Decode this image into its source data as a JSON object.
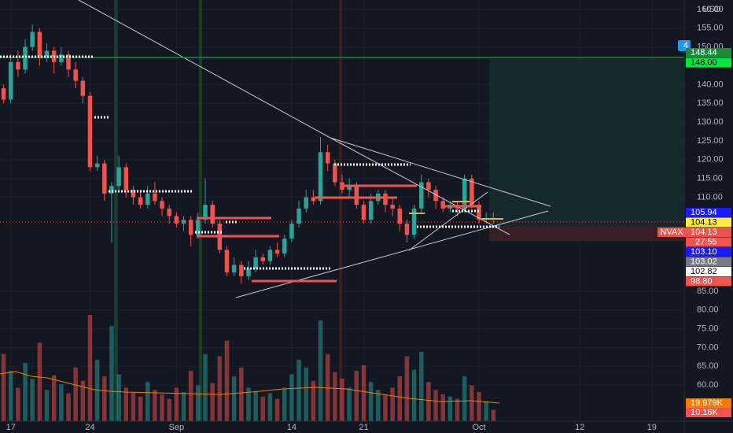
{
  "chart_data": {
    "type": "candlestick",
    "currency": "USD",
    "categories": [
      null,
      "17",
      null,
      null,
      null,
      null,
      null,
      null,
      null,
      null,
      null,
      null,
      "24",
      null,
      null,
      null,
      null,
      null,
      null,
      null,
      null,
      null,
      null,
      null,
      "Sep",
      null,
      null,
      null,
      null,
      null,
      null,
      null,
      null,
      null,
      null,
      null,
      null,
      null,
      null,
      null,
      "14",
      null,
      null,
      null,
      null,
      null,
      null,
      null,
      null,
      null,
      "21",
      null,
      null,
      null,
      null,
      null,
      null,
      null,
      null,
      null,
      null,
      null,
      null,
      null,
      null,
      null,
      "Oct",
      null,
      null,
      null,
      null,
      null,
      null,
      null,
      null,
      null,
      null,
      null,
      null,
      null,
      "12",
      null,
      null,
      null,
      null,
      null,
      null,
      null,
      null,
      null,
      "19",
      null,
      null,
      null,
      null
    ],
    "open": [
      139,
      136,
      146,
      144,
      150,
      154,
      147,
      149,
      146,
      148,
      144,
      141,
      137,
      118,
      119,
      111,
      113,
      118,
      112,
      110,
      108,
      111,
      109,
      107,
      105,
      103,
      104,
      100,
      104,
      108,
      103,
      96,
      90,
      92,
      89,
      91,
      94,
      93,
      96,
      95,
      99,
      103,
      107,
      110,
      109,
      122,
      119,
      114,
      112,
      113,
      108,
      104,
      109,
      111,
      108,
      107,
      103,
      100,
      107,
      114,
      112,
      109,
      107,
      108,
      107,
      115,
      108,
      104,
      104.5,
      null,
      null,
      null,
      null,
      null,
      null,
      null,
      null,
      null,
      null,
      null,
      null,
      null,
      null,
      null,
      null,
      null,
      null,
      null,
      null,
      null,
      null,
      null,
      null,
      null,
      null
    ],
    "high": [
      140,
      148,
      149,
      152,
      156,
      155,
      151,
      150,
      150,
      149,
      146,
      142,
      138,
      121,
      120,
      114,
      121,
      119,
      113,
      112,
      113,
      114,
      110,
      108,
      106,
      105,
      105,
      106,
      115,
      109,
      104,
      97,
      94,
      93,
      93,
      96,
      95,
      97,
      98,
      100,
      104,
      109,
      112,
      112,
      126,
      124,
      120,
      116,
      115,
      114,
      109,
      111,
      112,
      112,
      110,
      108,
      104,
      108,
      116,
      115,
      113,
      110,
      109,
      109,
      116,
      116,
      109,
      106,
      106,
      null,
      null,
      null,
      null,
      null,
      null,
      null,
      null,
      null,
      null,
      null,
      null,
      null,
      null,
      null,
      null,
      null,
      null,
      null,
      null,
      null,
      null,
      null,
      null,
      null,
      null
    ],
    "low": [
      135,
      135,
      142,
      143,
      149,
      145,
      146,
      143,
      145,
      142,
      139,
      135,
      117,
      117,
      109,
      98,
      112,
      110,
      108,
      107,
      107,
      108,
      105,
      103,
      102,
      101,
      97,
      99,
      103,
      102,
      95,
      89,
      89,
      87,
      88,
      90,
      92,
      92,
      94,
      94,
      98,
      102,
      106,
      108,
      108,
      117,
      113,
      111,
      110,
      107,
      103,
      103,
      108,
      106,
      105,
      101,
      98,
      99,
      106,
      110,
      107,
      106,
      106,
      105,
      106,
      107,
      103,
      103,
      103,
      null,
      null,
      null,
      null,
      null,
      null,
      null,
      null,
      null,
      null,
      null,
      null,
      null,
      null,
      null,
      null,
      null,
      null,
      null,
      null,
      null,
      null,
      null,
      null,
      null,
      null
    ],
    "close": [
      136,
      146,
      144,
      150,
      154,
      147,
      149,
      146,
      148,
      144,
      141,
      137,
      118,
      119,
      111,
      113,
      118,
      112,
      110,
      108,
      111,
      109,
      107,
      105,
      103,
      104,
      100,
      104,
      108,
      103,
      96,
      90,
      92,
      89,
      91,
      94,
      93,
      96,
      95,
      99,
      103,
      107,
      110,
      109,
      122,
      119,
      114,
      112,
      113,
      108,
      104,
      109,
      111,
      108,
      107,
      103,
      100,
      107,
      114,
      112,
      109,
      107,
      108,
      107,
      115,
      108,
      104,
      104.5,
      104.13,
      null,
      null,
      null,
      null,
      null,
      null,
      null,
      null,
      null,
      null,
      null,
      null,
      null,
      null,
      null,
      null,
      null,
      null,
      null,
      null,
      null,
      null,
      null,
      null,
      null,
      null
    ],
    "volume": [
      60000,
      45000,
      30000,
      52000,
      38000,
      70000,
      28000,
      41000,
      33000,
      25000,
      48000,
      36000,
      95000,
      55000,
      40000,
      85000,
      42000,
      30000,
      26000,
      22000,
      35000,
      28000,
      24000,
      20000,
      30000,
      26000,
      45000,
      32000,
      60000,
      34000,
      58000,
      72000,
      40000,
      48000,
      30000,
      27000,
      22000,
      25000,
      20000,
      30000,
      42000,
      55000,
      48000,
      36000,
      90000,
      60000,
      44000,
      38000,
      30000,
      45000,
      50000,
      35000,
      28000,
      24000,
      30000,
      40000,
      58000,
      46000,
      62000,
      35000,
      28000,
      24000,
      22000,
      20000,
      40000,
      32000,
      26000,
      18000,
      10160,
      null,
      null,
      null,
      null,
      null,
      null,
      null,
      null,
      null,
      null,
      null,
      null,
      null,
      null,
      null,
      null,
      null,
      null,
      null,
      null,
      null,
      null,
      null,
      null,
      null,
      null
    ],
    "volume_labels": [
      {
        "value": 19979,
        "label": "19.979K",
        "color": "#f57c00"
      },
      {
        "value": 10160,
        "label": "10.16K",
        "color": "#ef5350"
      }
    ],
    "up_color": "#26a69a",
    "down_color": "#ef5350",
    "ylim": [
      50.4,
      162.5
    ],
    "yticks": [
      {
        "value": 60,
        "label": "60.00"
      },
      {
        "value": 65,
        "label": "65.00"
      },
      {
        "value": 70,
        "label": "70.00"
      },
      {
        "value": 75,
        "label": "75.00"
      },
      {
        "value": 80,
        "label": "80.00"
      },
      {
        "value": 85,
        "label": "85.00"
      },
      {
        "value": 110,
        "label": "110.00"
      },
      {
        "value": 115,
        "label": "115.00"
      },
      {
        "value": 120,
        "label": "120.00"
      },
      {
        "value": 125,
        "label": "125.00"
      },
      {
        "value": 130,
        "label": "130.00"
      },
      {
        "value": 135,
        "label": "135.00"
      },
      {
        "value": 140,
        "label": "140.00"
      },
      {
        "value": 150,
        "label": "150.00"
      },
      {
        "value": 155,
        "label": "155.00"
      },
      {
        "value": 160,
        "label": "160.00"
      }
    ],
    "grid": true,
    "alert_badge": "4",
    "last_price": {
      "symbol": "NVAX",
      "value": 104.13,
      "label": "104.13",
      "countdown": "27:55"
    },
    "price_labels": [
      {
        "value": 148.44,
        "label": "148.44",
        "color": "#1e8a3c",
        "text_color": "#ffffff"
      },
      {
        "value": 148.0,
        "label": "148.00",
        "color": "#00e640",
        "text_color": "#000000"
      },
      {
        "value": 105.94,
        "label": "105.94",
        "color": "#1a1aff",
        "text_color": "#ffffff"
      },
      {
        "value": 104.13,
        "label": "104.13",
        "color": "#ffeb3b",
        "text_color": "#000000"
      },
      {
        "value": 103.1,
        "label": "103.10",
        "color": "#1a1aff",
        "text_color": "#ffffff"
      },
      {
        "value": 103.02,
        "label": "103.02",
        "color": "#787b86",
        "text_color": "#ffffff"
      },
      {
        "value": 102.82,
        "label": "102.82",
        "color": "#ffffff",
        "text_color": "#000000"
      },
      {
        "value": 98.8,
        "label": "98.80",
        "color": "#ef5350",
        "text_color": "#ffffff"
      }
    ]
  }
}
